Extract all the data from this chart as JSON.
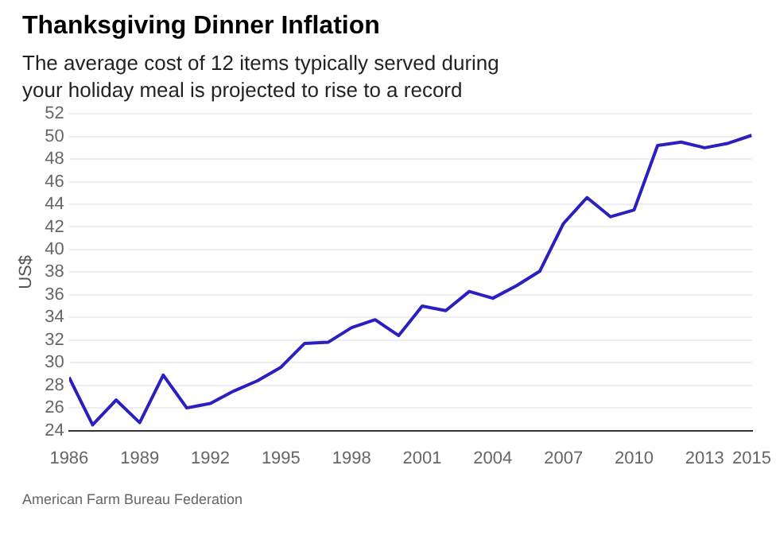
{
  "chart_data": {
    "type": "line",
    "title": "Thanksgiving Dinner Inflation",
    "subtitle": "The average cost of 12 items typically served during your holiday meal is projected to rise to a record",
    "ylabel": "US$",
    "x": [
      1986,
      1987,
      1988,
      1989,
      1990,
      1991,
      1992,
      1993,
      1994,
      1995,
      1996,
      1997,
      1998,
      1999,
      2000,
      2001,
      2002,
      2003,
      2004,
      2005,
      2006,
      2007,
      2008,
      2009,
      2010,
      2011,
      2012,
      2013,
      2014,
      2015
    ],
    "series": [
      {
        "color": "#2a1fbf",
        "values": [
          28.7,
          24.5,
          26.7,
          24.7,
          28.9,
          26.0,
          26.4,
          27.5,
          28.4,
          29.6,
          31.7,
          31.8,
          33.1,
          33.8,
          32.4,
          35.0,
          34.6,
          36.3,
          35.7,
          36.8,
          38.1,
          42.3,
          44.6,
          42.9,
          43.5,
          49.2,
          49.5,
          49.0,
          49.4,
          50.1
        ]
      }
    ],
    "xlim": [
      1986,
      2015
    ],
    "xticks": [
      1986,
      1989,
      1992,
      1995,
      1998,
      2001,
      2004,
      2007,
      2010,
      2013,
      2015
    ],
    "ylim": [
      24,
      52
    ],
    "yticks": [
      24,
      26,
      28,
      30,
      32,
      34,
      36,
      38,
      40,
      42,
      44,
      46,
      48,
      50,
      52
    ],
    "grid": "y",
    "marker": "none",
    "line_style": "solid",
    "legend": false,
    "annotations": [
      "American Farm Bureau Federation"
    ]
  }
}
